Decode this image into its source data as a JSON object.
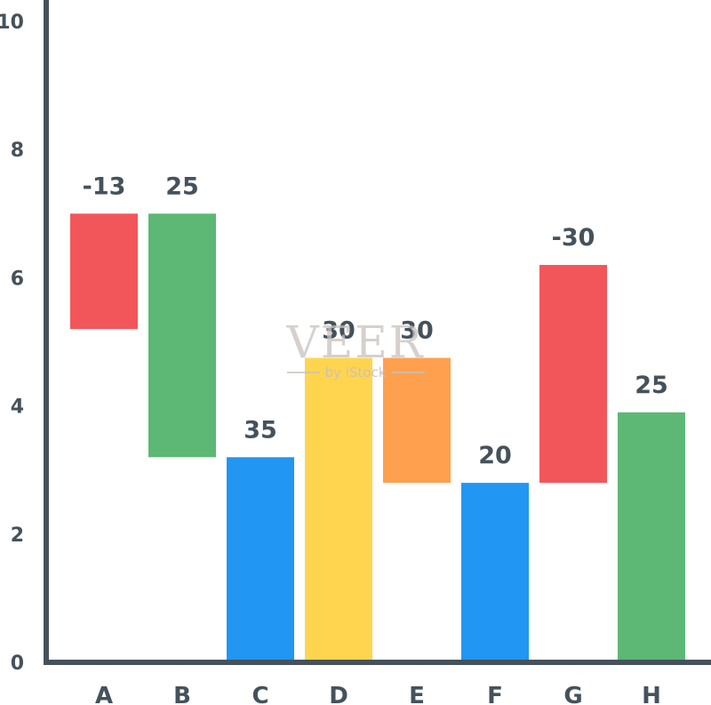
{
  "chart_data": {
    "type": "bar",
    "categories": [
      "A",
      "B",
      "C",
      "D",
      "E",
      "F",
      "G",
      "H"
    ],
    "ranges": [
      [
        5.2,
        7.0
      ],
      [
        3.2,
        7.0
      ],
      [
        0.0,
        3.2
      ],
      [
        0.0,
        4.75
      ],
      [
        2.8,
        4.75
      ],
      [
        0.0,
        2.8
      ],
      [
        2.8,
        6.2
      ],
      [
        0.0,
        3.9
      ]
    ],
    "data_labels": [
      "-13",
      "25",
      "35",
      "30",
      "30",
      "20",
      "-30",
      "25"
    ],
    "colors": [
      "#f3565a",
      "#5cb874",
      "#2196f3",
      "#ffd54f",
      "#ffa04f",
      "#2196f3",
      "#f3565a",
      "#5cb874"
    ],
    "yticks": [
      "0",
      "2",
      "4",
      "6",
      "8",
      "10"
    ],
    "ylim": [
      0,
      10
    ],
    "grid": false,
    "axis_color": "#45525c"
  },
  "watermark": {
    "main": "VEER",
    "sub": "by iStock"
  }
}
